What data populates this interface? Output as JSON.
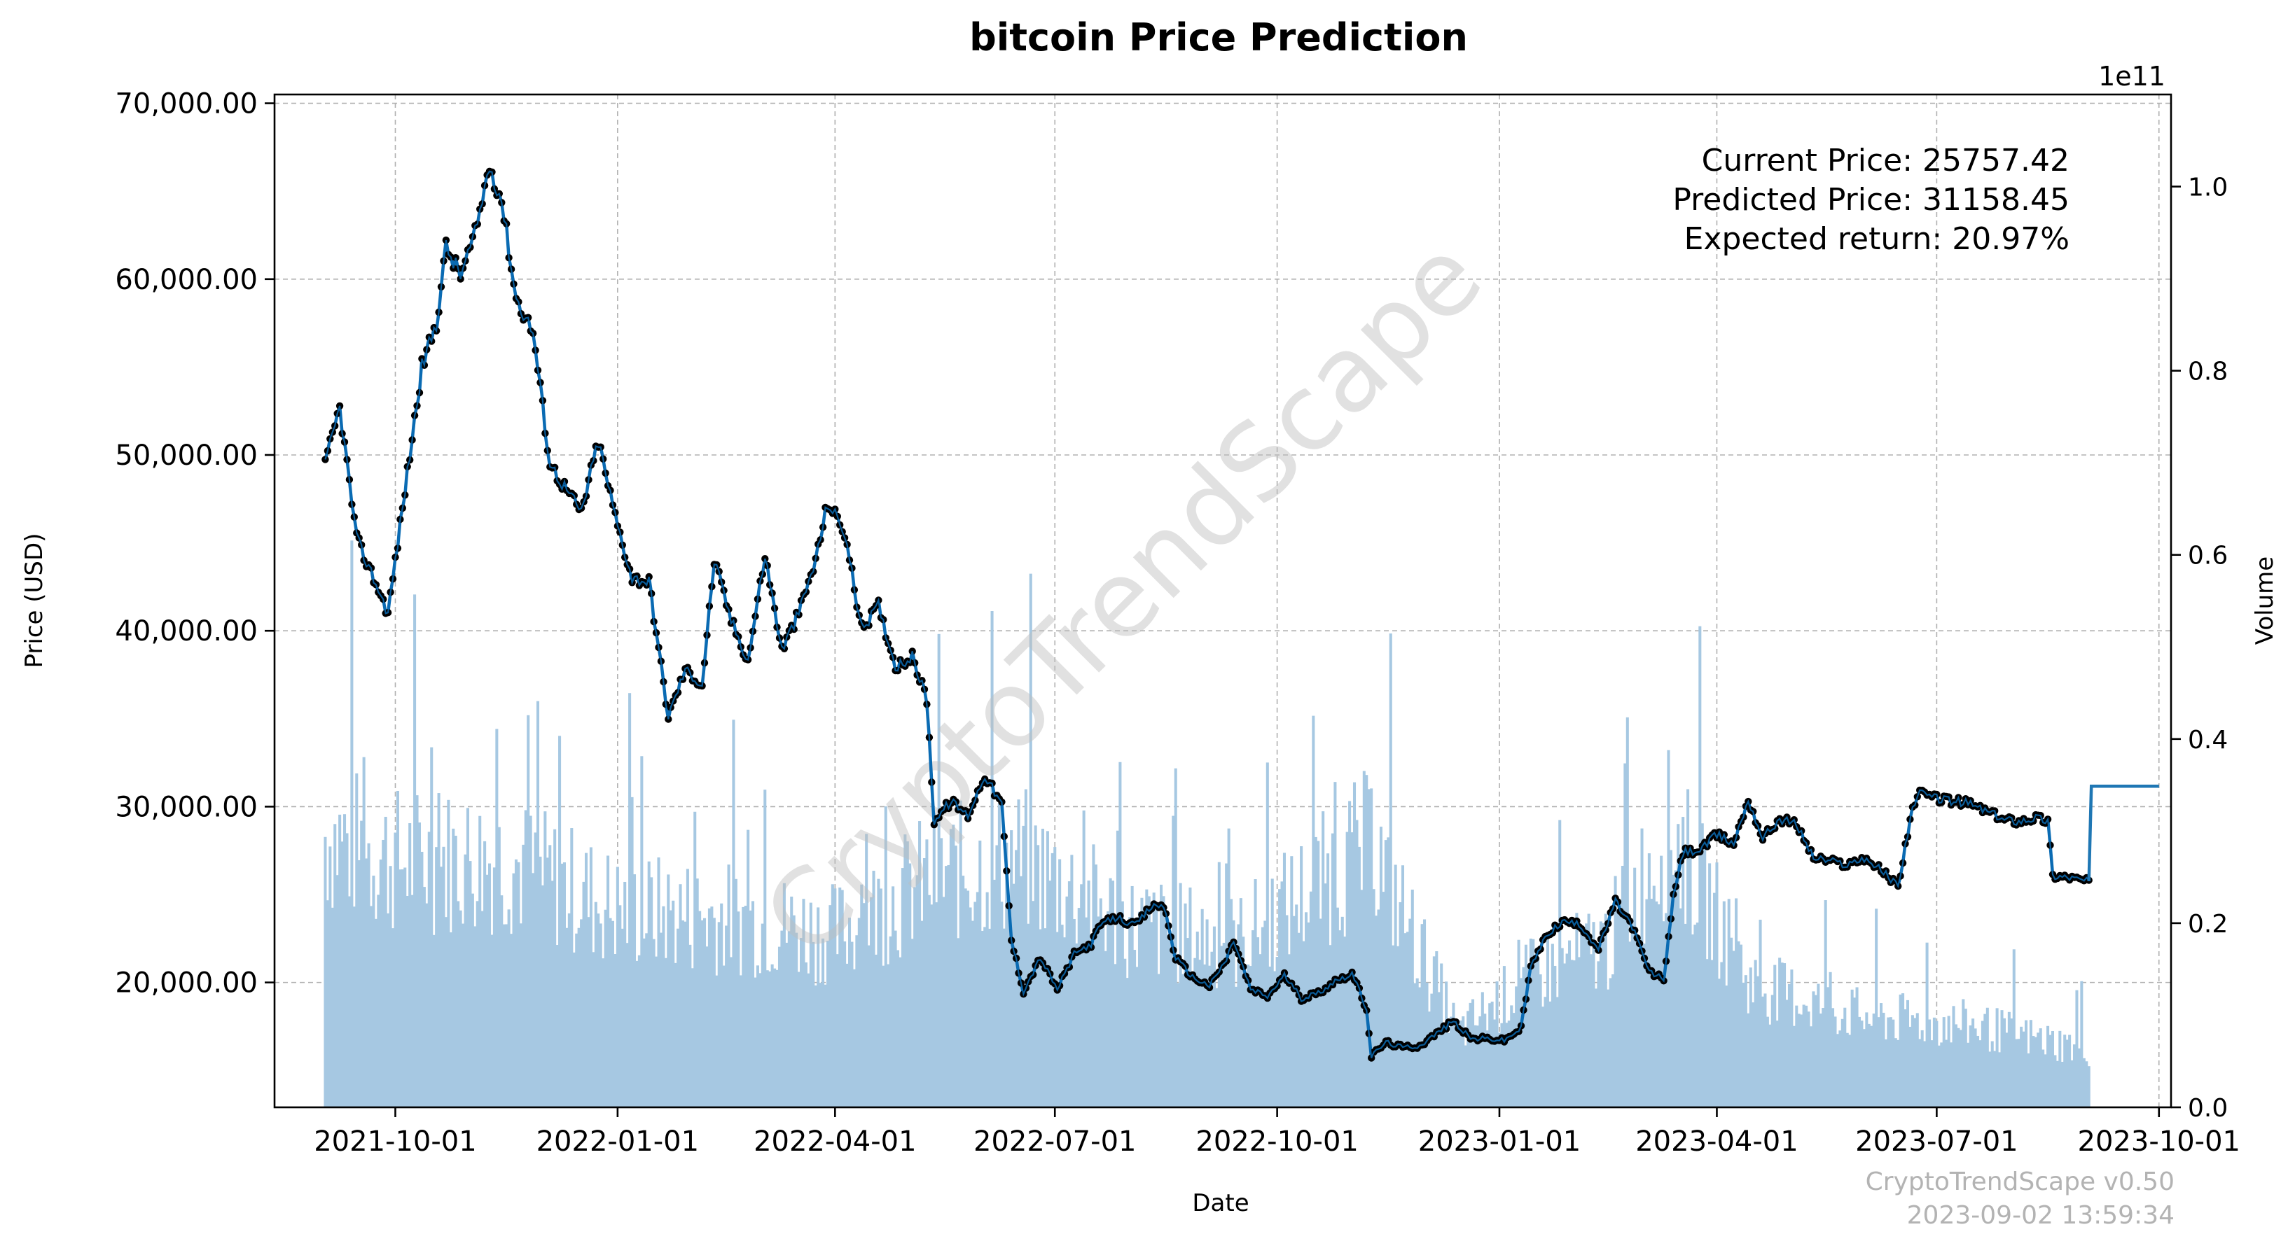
{
  "chart_data": {
    "type": "line",
    "title": "bitcoin Price Prediction",
    "xlabel": "Date",
    "ylabel": "Price (USD)",
    "ylabel_right": "Volume",
    "right_axis_exponent": "1e11",
    "ylim": [
      12900,
      70500
    ],
    "ylim_right": [
      0,
      1.1
    ],
    "x_range": [
      "2021-08-12",
      "2023-10-06"
    ],
    "x_ticks": [
      "2021-10-01",
      "2022-01-01",
      "2022-04-01",
      "2022-07-01",
      "2022-10-01",
      "2023-01-01",
      "2023-04-01",
      "2023-07-01",
      "2023-10-01"
    ],
    "y_ticks": [
      20000,
      30000,
      40000,
      50000,
      60000,
      70000
    ],
    "y_tick_labels": [
      "20,000.00",
      "30,000.00",
      "40,000.00",
      "50,000.00",
      "60,000.00",
      "70,000.00"
    ],
    "y_right_ticks": [
      0.0,
      0.2,
      0.4,
      0.6,
      0.8,
      1.0
    ],
    "y_right_tick_labels": [
      "0.0",
      "0.2",
      "0.4",
      "0.6",
      "0.8",
      "1.0"
    ],
    "grid": true,
    "colors": {
      "price_line": "#0a6bb3",
      "markers": "#000000",
      "volume": "#a6c8e2",
      "prediction": "#1f77b4"
    },
    "series": [
      {
        "name": "Price",
        "start_date": "2021-09-02",
        "end_date": "2023-09-02",
        "x": [
          "2021-09-02",
          "2021-09-08",
          "2021-09-15",
          "2021-09-22",
          "2021-09-28",
          "2021-10-05",
          "2021-10-12",
          "2021-10-18",
          "2021-10-22",
          "2021-10-28",
          "2021-11-03",
          "2021-11-09",
          "2021-11-14",
          "2021-11-20",
          "2021-11-27",
          "2021-12-04",
          "2021-12-10",
          "2021-12-17",
          "2021-12-24",
          "2021-12-31",
          "2022-01-07",
          "2022-01-14",
          "2022-01-22",
          "2022-01-29",
          "2022-02-05",
          "2022-02-10",
          "2022-02-17",
          "2022-02-24",
          "2022-03-03",
          "2022-03-10",
          "2022-03-17",
          "2022-03-24",
          "2022-03-29",
          "2022-04-05",
          "2022-04-12",
          "2022-04-19",
          "2022-04-26",
          "2022-05-03",
          "2022-05-09",
          "2022-05-12",
          "2022-05-19",
          "2022-05-26",
          "2022-06-02",
          "2022-06-09",
          "2022-06-13",
          "2022-06-18",
          "2022-06-25",
          "2022-07-02",
          "2022-07-09",
          "2022-07-16",
          "2022-07-20",
          "2022-07-27",
          "2022-08-03",
          "2022-08-10",
          "2022-08-15",
          "2022-08-20",
          "2022-08-27",
          "2022-09-03",
          "2022-09-10",
          "2022-09-13",
          "2022-09-20",
          "2022-09-27",
          "2022-10-04",
          "2022-10-11",
          "2022-10-18",
          "2022-10-25",
          "2022-11-01",
          "2022-11-07",
          "2022-11-09",
          "2022-11-15",
          "2022-11-22",
          "2022-11-29",
          "2022-12-06",
          "2022-12-13",
          "2022-12-20",
          "2022-12-27",
          "2023-01-03",
          "2023-01-10",
          "2023-01-14",
          "2023-01-21",
          "2023-01-28",
          "2023-02-04",
          "2023-02-11",
          "2023-02-18",
          "2023-02-25",
          "2023-03-04",
          "2023-03-10",
          "2023-03-14",
          "2023-03-18",
          "2023-03-25",
          "2023-04-01",
          "2023-04-08",
          "2023-04-14",
          "2023-04-20",
          "2023-04-27",
          "2023-05-04",
          "2023-05-11",
          "2023-05-18",
          "2023-05-25",
          "2023-06-01",
          "2023-06-08",
          "2023-06-15",
          "2023-06-21",
          "2023-06-24",
          "2023-07-01",
          "2023-07-08",
          "2023-07-14",
          "2023-07-21",
          "2023-07-28",
          "2023-08-04",
          "2023-08-11",
          "2023-08-16",
          "2023-08-18",
          "2023-08-25",
          "2023-09-02"
        ],
        "values": [
          49400,
          52700,
          45200,
          43000,
          41000,
          48000,
          55000,
          57500,
          61800,
          60200,
          62500,
          66500,
          64500,
          58900,
          57000,
          49500,
          48200,
          46700,
          50800,
          46500,
          43000,
          42800,
          35100,
          37800,
          36900,
          44000,
          40600,
          38300,
          44300,
          38900,
          41000,
          44000,
          47300,
          45600,
          40100,
          41400,
          38000,
          38500,
          36100,
          29200,
          30300,
          29500,
          31800,
          30100,
          22400,
          19500,
          21400,
          19600,
          21600,
          22200,
          23300,
          23700,
          23200,
          24300,
          24400,
          21400,
          20300,
          19800,
          21300,
          22400,
          19600,
          19200,
          20400,
          19100,
          19400,
          20100,
          20500,
          18500,
          15800,
          16600,
          16300,
          16400,
          17100,
          17800,
          16800,
          16800,
          16700,
          17400,
          20900,
          22800,
          23500,
          23200,
          21900,
          24600,
          23200,
          20600,
          20200,
          24800,
          27400,
          27500,
          28400,
          27900,
          30400,
          28200,
          29300,
          29000,
          27100,
          26900,
          26700,
          27100,
          26400,
          25500,
          30000,
          30700,
          30500,
          30300,
          30200,
          29800,
          29300,
          29200,
          29400,
          29200,
          26100,
          26000,
          25757
        ]
      },
      {
        "name": "Prediction",
        "x": [
          "2023-09-02",
          "2023-09-03",
          "2023-10-01"
        ],
        "values": [
          25757,
          31158,
          31158
        ]
      },
      {
        "name": "Volume",
        "x": [
          "2021-09-02",
          "2021-10-01",
          "2021-11-15",
          "2022-01-01",
          "2022-02-15",
          "2022-04-01",
          "2022-05-12",
          "2022-06-18",
          "2022-08-01",
          "2022-09-15",
          "2022-11-09",
          "2022-12-15",
          "2023-01-15",
          "2023-02-15",
          "2023-03-13",
          "2023-04-15",
          "2023-06-01",
          "2023-07-15",
          "2023-09-02"
        ],
        "values": [
          0.33,
          0.3,
          0.3,
          0.24,
          0.23,
          0.21,
          0.28,
          0.3,
          0.22,
          0.2,
          0.32,
          0.09,
          0.16,
          0.2,
          0.34,
          0.15,
          0.11,
          0.1,
          0.07
        ]
      }
    ]
  },
  "annotations": {
    "current_price": "Current Price: 25757.42",
    "predicted_price": "Predicted Price: 31158.45",
    "expected_return": "Expected return: 20.97%",
    "watermark": "CryptoTrendScape",
    "footer_version": "CryptoTrendScape v0.50",
    "footer_timestamp": "2023-09-02 13:59:34"
  }
}
